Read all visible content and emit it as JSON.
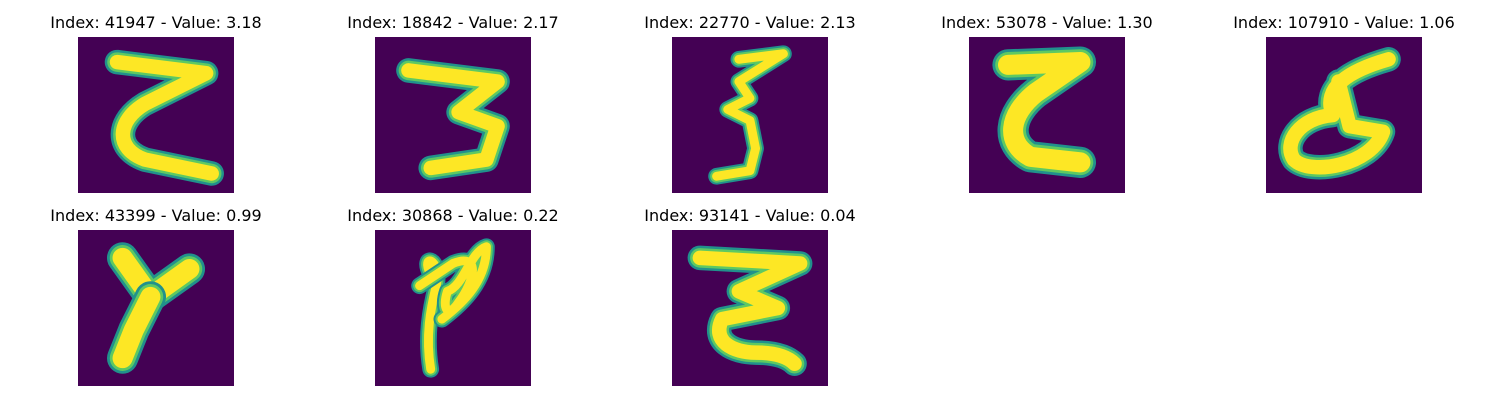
{
  "colors": {
    "background": "#440154",
    "stroke_core": "#fde725",
    "stroke_mid": "#5ec962",
    "stroke_edge": "#21918c"
  },
  "panels": [
    {
      "title": "Index: 41947 - Value: 3.18"
    },
    {
      "title": "Index: 18842 - Value: 2.17"
    },
    {
      "title": "Index: 22770 - Value: 2.13"
    },
    {
      "title": "Index: 53078 - Value: 1.30"
    },
    {
      "title": "Index: 107910 - Value: 1.06"
    },
    {
      "title": "Index: 43399 - Value: 0.99"
    },
    {
      "title": "Index: 30868 - Value: 0.22"
    },
    {
      "title": "Index: 93141 - Value: 0.04"
    }
  ]
}
